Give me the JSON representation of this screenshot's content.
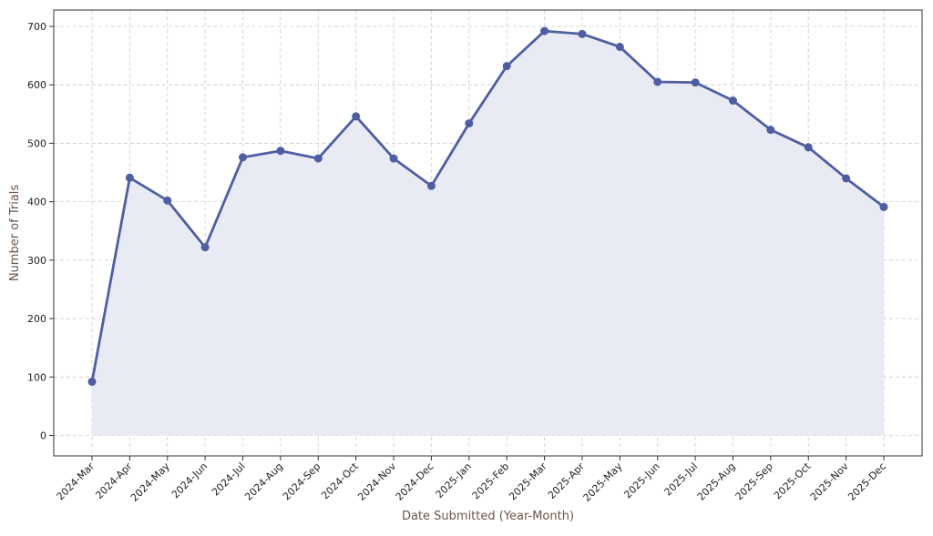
{
  "chart_data": {
    "type": "area",
    "title": "",
    "xlabel": "Date Submitted (Year-Month)",
    "ylabel": "Number of Trials",
    "categories": [
      "2024-Mar",
      "2024-Apr",
      "2024-May",
      "2024-Jun",
      "2024-Jul",
      "2024-Aug",
      "2024-Sep",
      "2024-Oct",
      "2024-Nov",
      "2024-Dec",
      "2025-Jan",
      "2025-Feb",
      "2025-Mar",
      "2025-Apr",
      "2025-May",
      "2025-Jun",
      "2025-Jul",
      "2025-Aug",
      "2025-Sep",
      "2025-Oct",
      "2025-Nov",
      "2025-Dec"
    ],
    "series": [
      {
        "values": [
          92,
          441,
          402,
          322,
          476,
          487,
          474,
          546,
          474,
          427,
          534,
          632,
          692,
          687,
          665,
          605,
          604,
          573,
          523,
          493,
          440,
          391
        ]
      }
    ],
    "ylim": [
      -35,
      728
    ],
    "yticks": [
      0,
      100,
      200,
      300,
      400,
      500,
      600,
      700
    ],
    "grid": true,
    "legend": "none",
    "colors": {
      "line": "#4f5ea3",
      "fill": "#e8ebf3",
      "grid": "#cccccc",
      "axis": "#333333",
      "label": "#6b5548"
    }
  }
}
